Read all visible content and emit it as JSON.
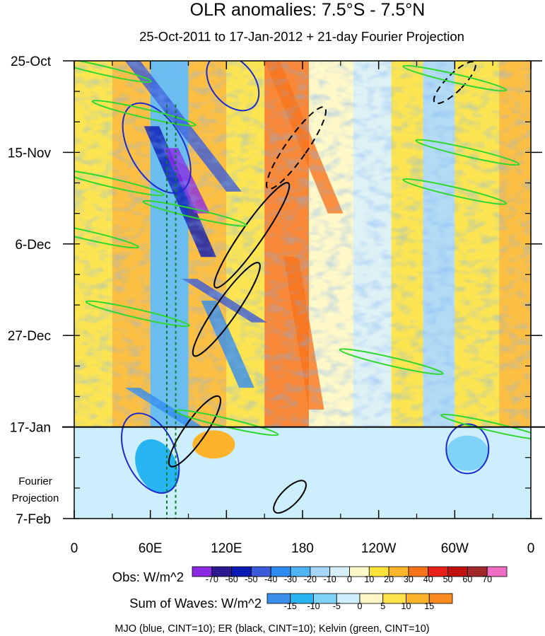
{
  "chart_data": {
    "type": "heatmap",
    "title": "OLR anomalies: 7.5°S - 7.5°N",
    "subtitle": "25-Oct-2011 to 17-Jan-2012 + 21-day Fourier Projection",
    "x_tick_labels": [
      "0",
      "60E",
      "120E",
      "180",
      "120W",
      "60W",
      "0"
    ],
    "x_ticks_lon_east": [
      0,
      60,
      120,
      180,
      240,
      300,
      360
    ],
    "xlim": [
      0,
      360
    ],
    "y_tick_labels": [
      "25-Oct",
      "15-Nov",
      "6-Dec",
      "27-Dec",
      "17-Jan",
      "7-Feb"
    ],
    "y_ticks_day": [
      0,
      21,
      42,
      63,
      84,
      105
    ],
    "ylim_day": [
      0,
      105
    ],
    "observation_end_day": 84,
    "projection_label_line1": "Fourier",
    "projection_label_line2": "Projection",
    "reference_lines_lon": [
      73,
      80
    ],
    "obs_colorbar": {
      "label": "Obs: W/m^2",
      "levels": [
        "-70",
        "-60",
        "-50",
        "-40",
        "-30",
        "-20",
        "-10",
        "0",
        "10",
        "20",
        "30",
        "40",
        "50",
        "60",
        "70"
      ],
      "colors": [
        "#8a2be2",
        "#2b1a8f",
        "#0a18b4",
        "#3a5ad8",
        "#2f8cf0",
        "#4fb4f5",
        "#a6d6fa",
        "#d8f0fb",
        "#fff8c8",
        "#fde23c",
        "#fdb52a",
        "#f7741d",
        "#e8201a",
        "#c01010",
        "#a02828",
        "#ef6fc7"
      ]
    },
    "waves_colorbar": {
      "label": "Sum of Waves: W/m^2",
      "levels": [
        "-15",
        "-10",
        "-5",
        "0",
        "5",
        "10",
        "15"
      ],
      "colors": [
        "#3a8fe8",
        "#27b4f0",
        "#7fd2f8",
        "#cdeefb",
        "#fff6c8",
        "#fde24a",
        "#fdb42a",
        "#f98a1e"
      ]
    },
    "series": [
      {
        "name": "MJO",
        "color": "blue",
        "cint": 10
      },
      {
        "name": "ER",
        "color": "black",
        "cint": 10
      },
      {
        "name": "Kelvin",
        "color": "green",
        "cint": 10
      }
    ],
    "footer": "MJO (blue, CINT=10); ER (black, CINT=10); Kelvin (green, CINT=10)"
  }
}
